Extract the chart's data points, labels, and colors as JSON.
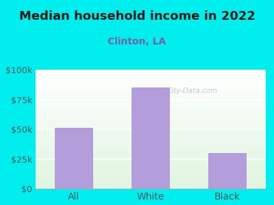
{
  "title": "Median household income in 2022",
  "subtitle": "Clinton, LA",
  "categories": [
    "All",
    "White",
    "Black"
  ],
  "values": [
    51000,
    85000,
    30000
  ],
  "bar_color": "#b39ddb",
  "background_outer": "#00eeee",
  "title_color": "#1a1a1a",
  "subtitle_color": "#7b5ea7",
  "tick_color": "#555555",
  "ylim": [
    0,
    100000
  ],
  "yticks": [
    0,
    25000,
    50000,
    75000,
    100000
  ],
  "ytick_labels": [
    "$0",
    "$25k",
    "$50k",
    "$75k",
    "$100k"
  ],
  "watermark": "City-Data.com",
  "title_fontsize": 13,
  "subtitle_fontsize": 10,
  "tick_fontsize": 9
}
